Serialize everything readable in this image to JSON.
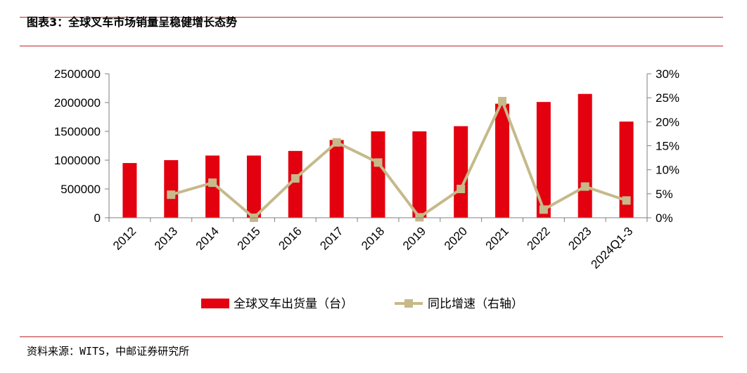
{
  "header": {
    "title": "图表3：全球叉车市场销量呈稳健增长态势"
  },
  "footer": {
    "source": "资料来源：WITS，中邮证券研究所"
  },
  "colors": {
    "bar": "#e3000f",
    "line": "#c6b98a",
    "rule": "#c0262d"
  },
  "chart_data": {
    "type": "bar",
    "categories": [
      "2012",
      "2013",
      "2014",
      "2015",
      "2016",
      "2017",
      "2018",
      "2019",
      "2020",
      "2021",
      "2022",
      "2023",
      "2024Q1-3"
    ],
    "series": [
      {
        "name": "全球叉车出货量（台）",
        "type": "bar",
        "axis": "left",
        "values": [
          950000,
          1000000,
          1080000,
          1080000,
          1160000,
          1350000,
          1500000,
          1500000,
          1590000,
          1980000,
          2010000,
          2150000,
          1670000
        ]
      },
      {
        "name": "同比增速（右轴）",
        "type": "line",
        "axis": "right",
        "unit": "%",
        "values": [
          null,
          4.8,
          7.3,
          0.0,
          8.2,
          15.7,
          11.5,
          0.1,
          6.0,
          24.3,
          1.7,
          6.5,
          3.6
        ]
      }
    ],
    "y_left": {
      "min": 0,
      "max": 2500000,
      "ticks": [
        "0",
        "500000",
        "1000000",
        "1500000",
        "2000000",
        "2500000"
      ]
    },
    "y_right": {
      "min": 0,
      "max": 30,
      "ticks": [
        "0%",
        "5%",
        "10%",
        "15%",
        "20%",
        "25%",
        "30%"
      ]
    },
    "legend": "bottom",
    "grid": false
  }
}
